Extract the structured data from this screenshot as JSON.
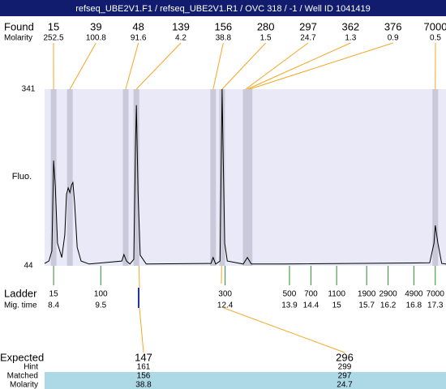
{
  "chart_data": {
    "type": "electropherogram",
    "title": "refseq_UBE2V1.F1 / refseq_UBE2V1.R1 / OVC 318 / -1 / Well ID 1041419",
    "found_label": "Found",
    "molarity_label": "Molarity",
    "found": {
      "sizes": [
        15,
        39,
        48,
        139,
        156,
        280,
        297,
        362,
        376,
        7000
      ],
      "molarity": [
        252.5,
        100.8,
        91.6,
        4.2,
        38.8,
        1.5,
        24.7,
        1.3,
        0.9,
        0.5
      ],
      "times": [
        8.4,
        8.78,
        10.08,
        10.33,
        12.12,
        12.33,
        12.88,
        12.92,
        12.97,
        17.3
      ],
      "band_color": "#c9c9d9",
      "leader_color": "#f5a623"
    },
    "y_label": "Fluo.",
    "ylim": [
      44,
      341
    ],
    "yticks": [
      44,
      341
    ],
    "xlim": [
      8.19,
      17.55
    ],
    "plot_color": "#e9e9f7",
    "trace": {
      "color": "#000000",
      "x": [
        8.19,
        8.29,
        8.36,
        8.4,
        8.44,
        8.49,
        8.59,
        8.66,
        8.7,
        8.74,
        8.78,
        8.82,
        8.85,
        8.89,
        8.95,
        9.04,
        9.23,
        9.99,
        10.04,
        10.1,
        10.18,
        10.27,
        10.31,
        10.33,
        10.37,
        10.42,
        10.56,
        12.07,
        12.12,
        12.18,
        12.28,
        12.33,
        12.35,
        12.39,
        12.45,
        12.82,
        12.92,
        13.01,
        13.77,
        17.17,
        17.27,
        17.3,
        17.36,
        17.45,
        17.55
      ],
      "values": [
        48,
        52,
        69,
        221,
        178,
        82,
        58,
        96,
        164,
        175,
        167,
        180,
        184,
        150,
        75,
        52,
        47,
        52,
        63,
        52,
        47,
        55,
        246,
        314,
        164,
        62,
        47,
        48,
        58,
        47,
        52,
        341,
        246,
        82,
        52,
        47,
        58,
        47,
        47,
        49,
        82,
        112,
        82,
        48,
        47
      ]
    },
    "ladder_label": "Ladder",
    "mig_time_label": "Mig. time",
    "ladder": {
      "sizes": [
        15,
        100,
        300,
        500,
        700,
        1100,
        1900,
        2900,
        4900,
        7000
      ],
      "times": [
        8.4,
        9.5,
        12.4,
        13.9,
        14.4,
        15,
        15.7,
        16.2,
        16.8,
        17.3
      ],
      "color": "#2e8b2e"
    },
    "expected": {
      "label": "Expected",
      "values": [
        147,
        296
      ],
      "hint_label": "Hint",
      "hint": [
        161,
        299
      ],
      "matched_label": "Matched",
      "matched": [
        156,
        297
      ],
      "molarity_label": "Molarity",
      "molarity": [
        38.8,
        24.7
      ],
      "row_color": "#add8e6"
    }
  }
}
